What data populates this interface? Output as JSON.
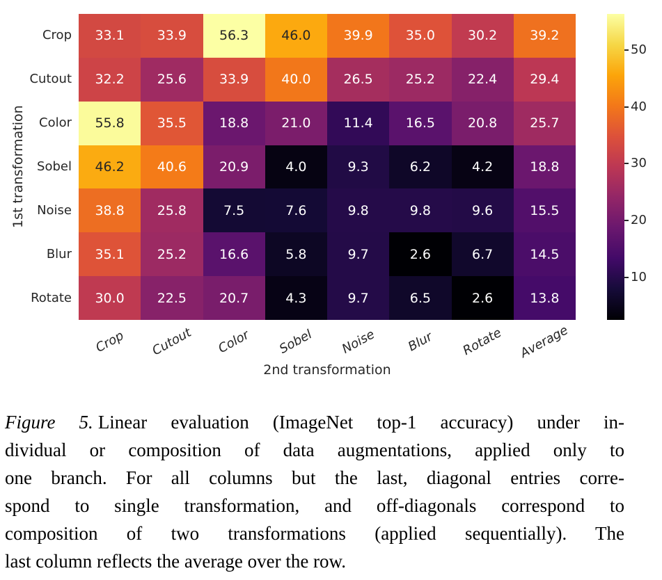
{
  "chart_data": {
    "type": "heatmap",
    "xlabel": "2nd transformation",
    "ylabel": "1st transformation",
    "rows": [
      "Crop",
      "Cutout",
      "Color",
      "Sobel",
      "Noise",
      "Blur",
      "Rotate"
    ],
    "columns": [
      "Crop",
      "Cutout",
      "Color",
      "Sobel",
      "Noise",
      "Blur",
      "Rotate",
      "Average"
    ],
    "values": [
      [
        33.1,
        33.9,
        56.3,
        46.0,
        39.9,
        35.0,
        30.2,
        39.2
      ],
      [
        32.2,
        25.6,
        33.9,
        40.0,
        26.5,
        25.2,
        22.4,
        29.4
      ],
      [
        55.8,
        35.5,
        18.8,
        21.0,
        11.4,
        16.5,
        20.8,
        25.7
      ],
      [
        46.2,
        40.6,
        20.9,
        4.0,
        9.3,
        6.2,
        4.2,
        18.8
      ],
      [
        38.8,
        25.8,
        7.5,
        7.6,
        9.8,
        9.8,
        9.6,
        15.5
      ],
      [
        35.1,
        25.2,
        16.6,
        5.8,
        9.7,
        2.6,
        6.7,
        14.5
      ],
      [
        30.0,
        22.5,
        20.7,
        4.3,
        9.7,
        6.5,
        2.6,
        13.8
      ]
    ],
    "vmin": 2.6,
    "vmax": 56.3,
    "colormap": "inferno",
    "colormap_stops": [
      "#000004",
      "#160b39",
      "#420a68",
      "#6a176e",
      "#932667",
      "#bc3754",
      "#dd513a",
      "#f37819",
      "#fca50a",
      "#f6d746",
      "#fcffa4"
    ],
    "colorbar_ticks": [
      10,
      20,
      30,
      40,
      50
    ],
    "annotation_colors": {
      "on_dark": "#ffffff",
      "on_light": "#262626"
    },
    "legend_position": "right-colorbar",
    "grid": false
  },
  "figure": {
    "caption": {
      "prefix": "Figure 5.",
      "lines": [
        "Linear evaluation (ImageNet top-1 accuracy) under in-",
        "dividual or composition of data augmentations, applied only to",
        "one branch.  For all columns but the last, diagonal entries corre-",
        "spond to single transformation, and off-diagonals correspond to",
        "composition of two transformations (applied sequentially).  The",
        "last column reflects the average over the row."
      ]
    }
  }
}
